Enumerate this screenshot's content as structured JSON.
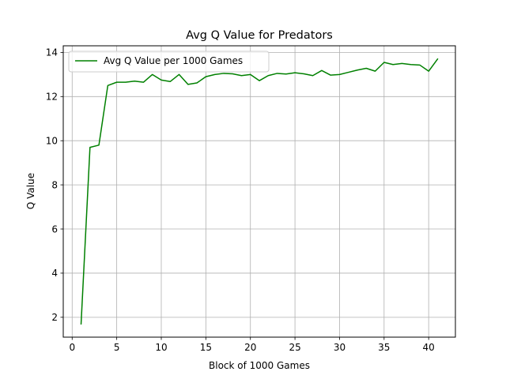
{
  "chart_data": {
    "type": "line",
    "title": "Avg Q Value for Predators",
    "xlabel": "Block of 1000 Games",
    "ylabel": "Q Value",
    "xlim": [
      -1.0,
      43.0
    ],
    "ylim": [
      1.1,
      14.3
    ],
    "xticks": [
      0,
      5,
      10,
      15,
      20,
      25,
      30,
      35,
      40
    ],
    "yticks": [
      2,
      4,
      6,
      8,
      10,
      12,
      14
    ],
    "grid": true,
    "legend_position": "upper-left",
    "series": [
      {
        "name": "Avg Q Value per 1000 Games",
        "color": "#008000",
        "x": [
          1,
          2,
          3,
          4,
          5,
          6,
          7,
          8,
          9,
          10,
          11,
          12,
          13,
          14,
          15,
          16,
          17,
          18,
          19,
          20,
          21,
          22,
          23,
          24,
          25,
          26,
          27,
          28,
          29,
          30,
          31,
          32,
          33,
          34,
          35,
          36,
          37,
          38,
          39,
          40,
          41
        ],
        "values": [
          1.7,
          9.7,
          9.8,
          12.5,
          12.65,
          12.65,
          12.7,
          12.65,
          13.0,
          12.75,
          12.68,
          13.0,
          12.55,
          12.62,
          12.9,
          13.0,
          13.05,
          13.03,
          12.95,
          13.0,
          12.72,
          12.95,
          13.05,
          13.02,
          13.08,
          13.03,
          12.95,
          13.18,
          12.97,
          13.0,
          13.1,
          13.2,
          13.28,
          13.15,
          13.55,
          13.45,
          13.5,
          13.45,
          13.43,
          13.15,
          13.7
        ]
      }
    ]
  }
}
